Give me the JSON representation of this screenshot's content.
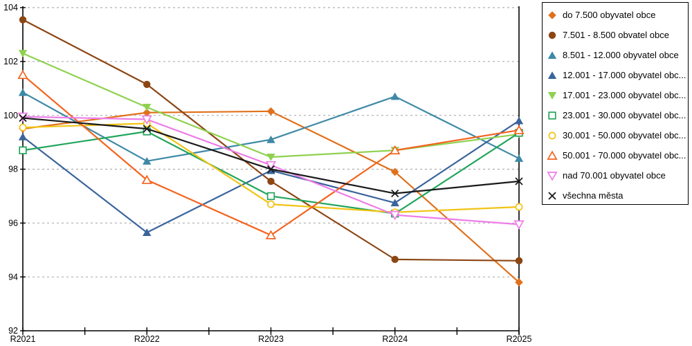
{
  "chart_data": {
    "type": "line",
    "title": "",
    "xlabel": "",
    "ylabel": "",
    "categories": [
      "R2021",
      "R2022",
      "R2023",
      "R2024",
      "R2025"
    ],
    "ylim": [
      92,
      104
    ],
    "ytick_step": 2,
    "y_ticks": [
      "92",
      "94",
      "96",
      "98",
      "100",
      "102",
      "104"
    ],
    "grid": "horizontal-dashed",
    "legend_position": "right",
    "series": [
      {
        "name": "do 7.500 obyvatel obce",
        "color": "#E0711C",
        "marker": "diamond",
        "fill": "solid",
        "values": [
          99.5,
          100.1,
          100.15,
          97.9,
          93.8
        ]
      },
      {
        "name": "7.501 - 8.500 obvatel obce",
        "color": "#8C4614",
        "marker": "circle",
        "fill": "solid",
        "values": [
          103.55,
          101.15,
          97.55,
          94.65,
          94.6
        ]
      },
      {
        "name": "8.501 - 12.000 obyvatel obce",
        "color": "#3D89A6",
        "marker": "triangle-up",
        "fill": "solid",
        "values": [
          100.85,
          98.3,
          99.1,
          100.7,
          98.4
        ]
      },
      {
        "name": "12.001 - 17.000 obyvatel obc...",
        "color": "#3A649B",
        "marker": "triangle-up",
        "fill": "solid",
        "values": [
          99.2,
          95.65,
          97.95,
          96.75,
          99.8
        ]
      },
      {
        "name": "17.001 - 23.000 obyvatel obc...",
        "color": "#8FD14F",
        "marker": "triangle-down",
        "fill": "solid",
        "values": [
          102.3,
          100.3,
          98.45,
          98.7,
          99.3
        ]
      },
      {
        "name": "23.001 - 30.000 obyvatel obc...",
        "color": "#22A55B",
        "marker": "square",
        "fill": "open",
        "values": [
          98.7,
          99.4,
          97.0,
          96.35,
          99.35
        ]
      },
      {
        "name": "30.001 - 50.000 obyvatel obc...",
        "color": "#F2C314",
        "marker": "circle",
        "fill": "open",
        "values": [
          99.55,
          99.7,
          96.7,
          96.4,
          96.6
        ]
      },
      {
        "name": "50.001 - 70.000 obyvatel obc...",
        "color": "#F4631E",
        "marker": "triangle-up",
        "fill": "open",
        "values": [
          101.5,
          97.6,
          95.55,
          98.7,
          99.45
        ]
      },
      {
        "name": "nad 70.001 obyvatel obce",
        "color": "#EE7DE8",
        "marker": "triangle-down",
        "fill": "open",
        "values": [
          99.95,
          99.85,
          98.15,
          96.3,
          95.95
        ]
      },
      {
        "name": "všechna města",
        "color": "#1A1A1A",
        "marker": "x",
        "fill": "line",
        "values": [
          99.9,
          99.5,
          98.0,
          97.1,
          97.55
        ]
      }
    ]
  },
  "colors": {
    "background": "#FFFFFF",
    "grid": "#ADADAD",
    "axis": "#000000",
    "legend_border": "#000000"
  }
}
